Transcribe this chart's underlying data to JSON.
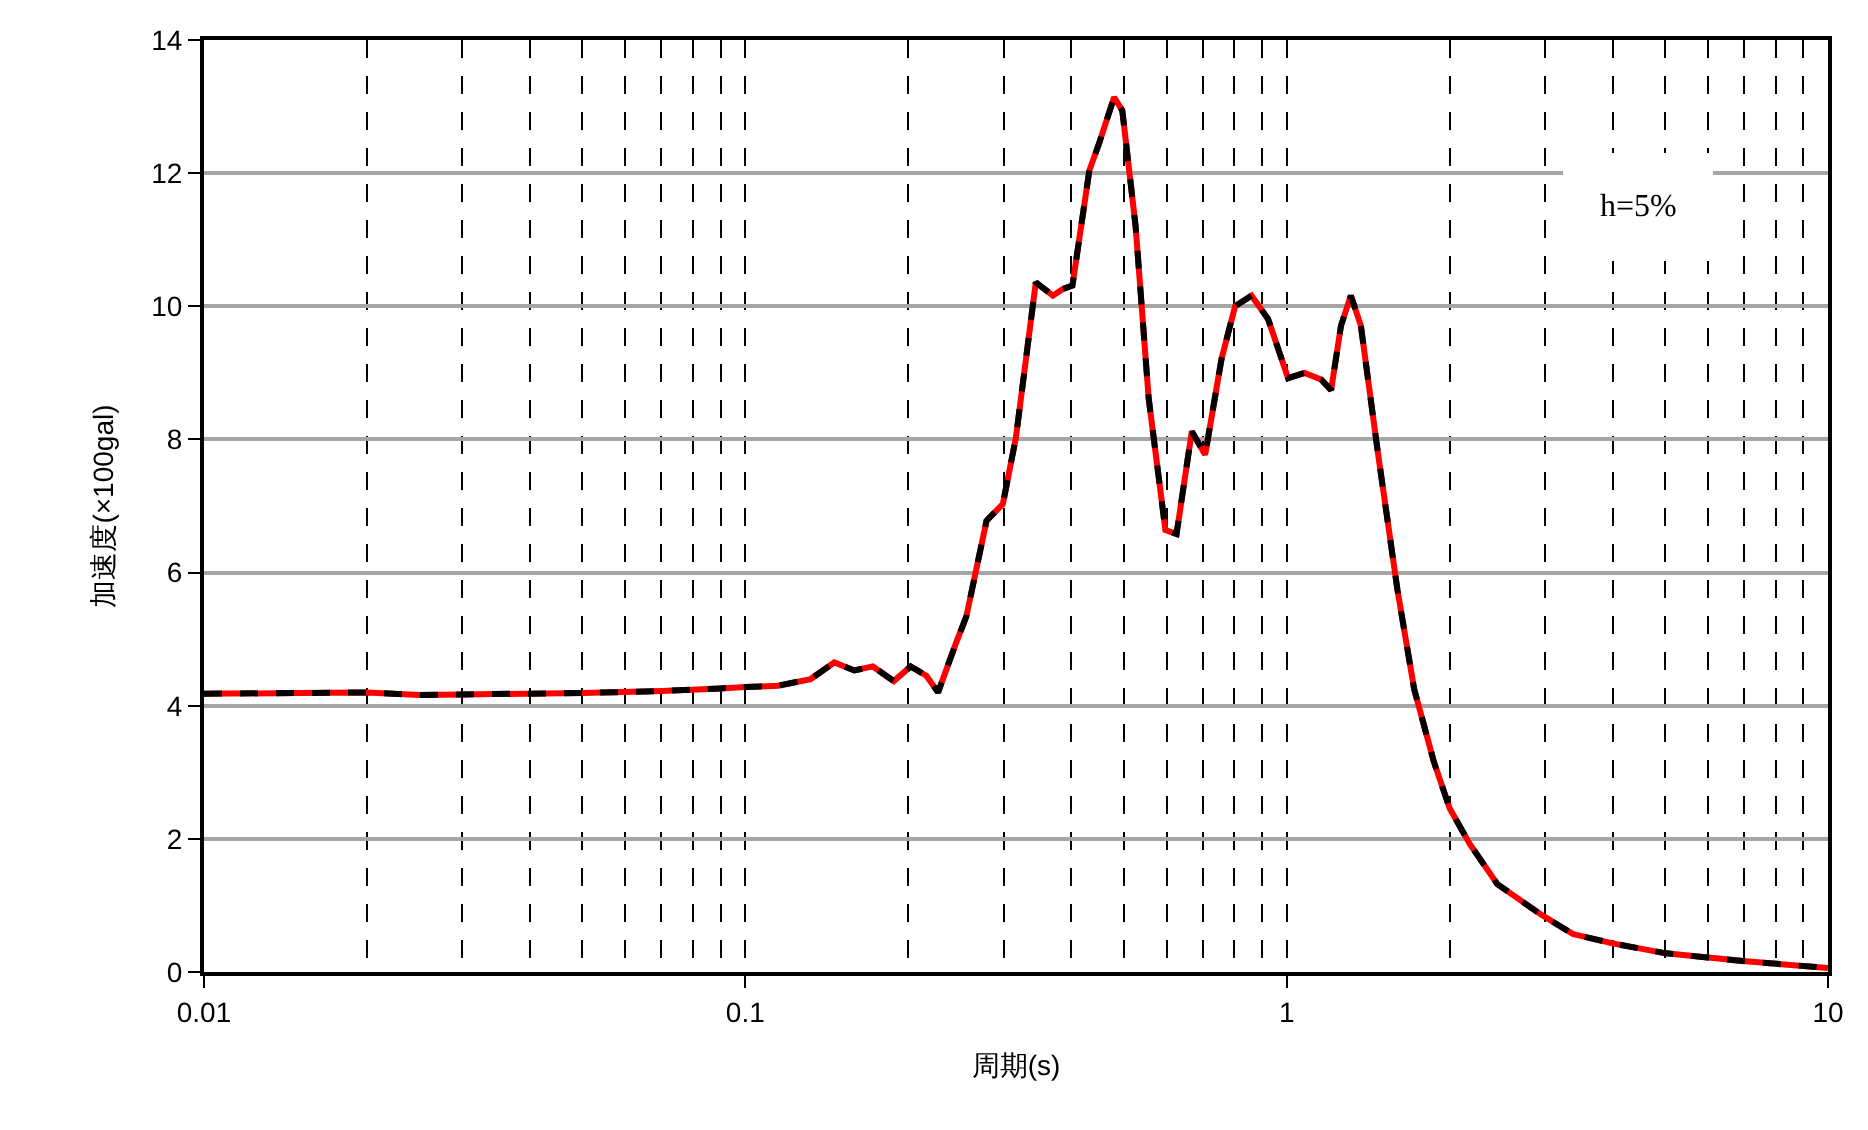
{
  "chart_data": {
    "type": "line",
    "xlabel": "周期(s)",
    "ylabel": "加速度(×100gal)",
    "log": "x",
    "grid": true,
    "xlim": [
      0.01,
      10
    ],
    "xticks": [
      0.01,
      0.1,
      1,
      10
    ],
    "ylim": [
      0,
      14
    ],
    "yticks": [
      0,
      2,
      4,
      6,
      8,
      10,
      12,
      14
    ],
    "x": [
      0.01,
      0.015,
      0.02,
      0.025,
      0.03,
      0.05,
      0.07,
      0.09,
      0.1,
      0.115,
      0.132,
      0.146,
      0.159,
      0.172,
      0.188,
      0.202,
      0.216,
      0.227,
      0.245,
      0.256,
      0.279,
      0.299,
      0.316,
      0.344,
      0.37,
      0.386,
      0.402,
      0.432,
      0.45,
      0.48,
      0.497,
      0.526,
      0.556,
      0.597,
      0.626,
      0.668,
      0.707,
      0.758,
      0.803,
      0.861,
      0.924,
      1.006,
      1.079,
      1.158,
      1.208,
      1.26,
      1.314,
      1.371,
      1.473,
      1.602,
      1.72,
      1.87,
      2.0,
      2.18,
      2.45,
      2.94,
      3.38,
      4.0,
      5.02,
      7.05,
      10.0
    ],
    "series": [
      {
        "color": "#ff0000",
        "line_style": "solid",
        "values": [
          4.18,
          4.19,
          4.2,
          4.16,
          4.17,
          4.19,
          4.22,
          4.26,
          4.28,
          4.3,
          4.4,
          4.65,
          4.53,
          4.59,
          4.37,
          4.59,
          4.45,
          4.2,
          4.94,
          5.34,
          6.78,
          7.03,
          8.02,
          10.36,
          10.16,
          10.26,
          10.31,
          12.04,
          12.44,
          13.14,
          12.94,
          11.2,
          8.62,
          6.64,
          6.58,
          8.12,
          7.77,
          9.21,
          10.0,
          10.16,
          9.81,
          8.92,
          9.0,
          8.9,
          8.74,
          9.71,
          10.16,
          9.71,
          7.82,
          5.74,
          4.25,
          3.16,
          2.46,
          1.92,
          1.32,
          0.87,
          0.57,
          0.43,
          0.28,
          0.16,
          0.06
        ]
      },
      {
        "color": "#000000",
        "line_style": "dashed",
        "values": [
          4.18,
          4.19,
          4.2,
          4.16,
          4.17,
          4.19,
          4.22,
          4.26,
          4.28,
          4.3,
          4.4,
          4.65,
          4.53,
          4.59,
          4.37,
          4.59,
          4.45,
          4.2,
          4.94,
          5.34,
          6.78,
          7.03,
          8.02,
          10.36,
          10.16,
          10.26,
          10.31,
          12.04,
          12.44,
          13.14,
          12.94,
          11.2,
          8.62,
          6.64,
          6.58,
          8.12,
          7.77,
          9.21,
          10.0,
          10.16,
          9.81,
          8.92,
          9.0,
          8.9,
          8.74,
          9.71,
          10.16,
          9.71,
          7.82,
          5.74,
          4.25,
          3.16,
          2.46,
          1.92,
          1.32,
          0.87,
          0.57,
          0.43,
          0.28,
          0.16,
          0.06
        ]
      }
    ],
    "annotations": [
      "h=5%"
    ]
  }
}
